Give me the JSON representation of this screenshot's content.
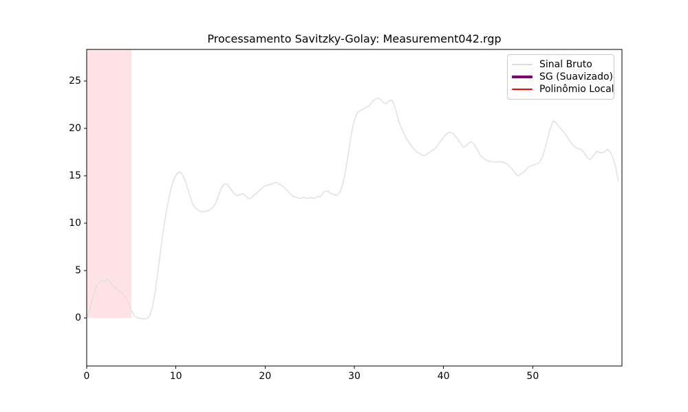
{
  "title": "Processamento Savitzky-Golay: Measurement042.rgp",
  "legend": {
    "items": [
      {
        "label": "Sinal Bruto",
        "color": "#dcdcdc",
        "thickness": 2
      },
      {
        "label": "SG (Suavizado)",
        "color": "#800080",
        "thickness": 4
      },
      {
        "label": "Polinômio Local",
        "color": "#ff0000",
        "thickness": 2
      }
    ]
  },
  "chart_data": {
    "type": "line",
    "title": "Processamento Savitzky-Golay: Measurement042.rgp",
    "xlabel": "",
    "ylabel": "",
    "xlim": [
      0,
      60
    ],
    "ylim": [
      -5.07,
      28.33
    ],
    "x_ticks": [
      0,
      10,
      20,
      30,
      40,
      50
    ],
    "y_ticks": [
      0,
      5,
      10,
      15,
      20,
      25
    ],
    "grid": false,
    "legend_position": "upper right",
    "highlight_region": {
      "x0": 0,
      "x1": 5,
      "y0": 0,
      "y1": 28.33,
      "color": "#ffe2e4"
    },
    "series": [
      {
        "name": "Sinal Bruto",
        "color": "#e2e2e2",
        "linewidth": 1.6,
        "points": [
          [
            0,
            0.1
          ],
          [
            0.3,
            0.7
          ],
          [
            0.6,
            1.9
          ],
          [
            0.9,
            2.9
          ],
          [
            1.2,
            3.5
          ],
          [
            1.5,
            3.8
          ],
          [
            1.8,
            4.0
          ],
          [
            2.1,
            3.9
          ],
          [
            2.3,
            4.1
          ],
          [
            2.6,
            3.8
          ],
          [
            2.9,
            3.4
          ],
          [
            3.2,
            3.2
          ],
          [
            3.6,
            2.9
          ],
          [
            4.0,
            2.6
          ],
          [
            4.4,
            2.1
          ],
          [
            4.7,
            1.5
          ],
          [
            5.0,
            0.8
          ],
          [
            5.3,
            0.3
          ],
          [
            5.6,
            0.05
          ],
          [
            6.0,
            -0.05
          ],
          [
            6.4,
            -0.1
          ],
          [
            6.8,
            -0.05
          ],
          [
            7.1,
            0.3
          ],
          [
            7.4,
            1.3
          ],
          [
            7.7,
            2.9
          ],
          [
            8.0,
            5.0
          ],
          [
            8.3,
            7.2
          ],
          [
            8.6,
            9.3
          ],
          [
            8.9,
            11.1
          ],
          [
            9.2,
            12.6
          ],
          [
            9.5,
            13.8
          ],
          [
            9.8,
            14.7
          ],
          [
            10.1,
            15.2
          ],
          [
            10.4,
            15.4
          ],
          [
            10.7,
            15.2
          ],
          [
            11.0,
            14.6
          ],
          [
            11.3,
            13.7
          ],
          [
            11.6,
            12.8
          ],
          [
            11.9,
            12.0
          ],
          [
            12.2,
            11.6
          ],
          [
            12.6,
            11.3
          ],
          [
            13.0,
            11.2
          ],
          [
            13.4,
            11.25
          ],
          [
            13.8,
            11.4
          ],
          [
            14.2,
            11.7
          ],
          [
            14.5,
            12.2
          ],
          [
            14.8,
            13.0
          ],
          [
            15.1,
            13.7
          ],
          [
            15.4,
            14.1
          ],
          [
            15.7,
            14.15
          ],
          [
            16.0,
            13.8
          ],
          [
            16.3,
            13.4
          ],
          [
            16.6,
            13.05
          ],
          [
            16.9,
            12.9
          ],
          [
            17.2,
            13.05
          ],
          [
            17.5,
            13.1
          ],
          [
            17.8,
            12.9
          ],
          [
            18.1,
            12.6
          ],
          [
            18.4,
            12.6
          ],
          [
            18.7,
            12.9
          ],
          [
            19.1,
            13.2
          ],
          [
            19.5,
            13.6
          ],
          [
            19.9,
            13.9
          ],
          [
            20.3,
            14.05
          ],
          [
            20.7,
            14.1
          ],
          [
            21.0,
            14.25
          ],
          [
            21.3,
            14.3
          ],
          [
            21.6,
            14.1
          ],
          [
            22.0,
            13.9
          ],
          [
            22.4,
            13.5
          ],
          [
            22.8,
            13.1
          ],
          [
            23.2,
            12.8
          ],
          [
            23.6,
            12.7
          ],
          [
            24.0,
            12.6
          ],
          [
            24.3,
            12.75
          ],
          [
            24.7,
            12.6
          ],
          [
            25.1,
            12.7
          ],
          [
            25.5,
            12.6
          ],
          [
            25.8,
            12.8
          ],
          [
            26.2,
            12.8
          ],
          [
            26.6,
            13.3
          ],
          [
            27.0,
            13.4
          ],
          [
            27.3,
            13.2
          ],
          [
            27.7,
            13.0
          ],
          [
            28.1,
            12.95
          ],
          [
            28.4,
            13.3
          ],
          [
            28.7,
            14.1
          ],
          [
            29.0,
            15.4
          ],
          [
            29.3,
            17.2
          ],
          [
            29.6,
            19.0
          ],
          [
            29.9,
            20.5
          ],
          [
            30.2,
            21.4
          ],
          [
            30.5,
            21.8
          ],
          [
            30.9,
            22.0
          ],
          [
            31.3,
            22.2
          ],
          [
            31.7,
            22.4
          ],
          [
            32.1,
            22.9
          ],
          [
            32.4,
            23.1
          ],
          [
            32.7,
            23.2
          ],
          [
            33.0,
            23.0
          ],
          [
            33.3,
            22.7
          ],
          [
            33.6,
            22.6
          ],
          [
            33.9,
            22.9
          ],
          [
            34.2,
            23.0
          ],
          [
            34.5,
            22.4
          ],
          [
            34.8,
            21.4
          ],
          [
            35.1,
            20.4
          ],
          [
            35.4,
            19.8
          ],
          [
            35.8,
            19.0
          ],
          [
            36.2,
            18.4
          ],
          [
            36.6,
            17.9
          ],
          [
            37.0,
            17.5
          ],
          [
            37.4,
            17.3
          ],
          [
            37.8,
            17.1
          ],
          [
            38.2,
            17.3
          ],
          [
            38.6,
            17.6
          ],
          [
            39.0,
            17.8
          ],
          [
            39.4,
            18.3
          ],
          [
            39.8,
            18.8
          ],
          [
            40.2,
            19.3
          ],
          [
            40.6,
            19.6
          ],
          [
            41.0,
            19.5
          ],
          [
            41.4,
            19.1
          ],
          [
            41.8,
            18.6
          ],
          [
            42.2,
            18.0
          ],
          [
            42.6,
            18.2
          ],
          [
            43.0,
            18.6
          ],
          [
            43.3,
            18.5
          ],
          [
            43.7,
            17.9
          ],
          [
            44.1,
            17.2
          ],
          [
            44.5,
            16.8
          ],
          [
            44.9,
            16.6
          ],
          [
            45.3,
            16.5
          ],
          [
            45.8,
            16.45
          ],
          [
            46.3,
            16.5
          ],
          [
            46.8,
            16.4
          ],
          [
            47.2,
            16.2
          ],
          [
            47.6,
            15.8
          ],
          [
            48.0,
            15.3
          ],
          [
            48.3,
            15.0
          ],
          [
            48.7,
            15.2
          ],
          [
            49.1,
            15.5
          ],
          [
            49.5,
            15.9
          ],
          [
            49.9,
            16.1
          ],
          [
            50.3,
            16.2
          ],
          [
            50.7,
            16.35
          ],
          [
            51.1,
            17.0
          ],
          [
            51.5,
            18.3
          ],
          [
            51.9,
            19.8
          ],
          [
            52.3,
            20.8
          ],
          [
            52.6,
            20.6
          ],
          [
            53.0,
            20.1
          ],
          [
            53.4,
            19.7
          ],
          [
            53.8,
            19.2
          ],
          [
            54.2,
            18.6
          ],
          [
            54.6,
            18.15
          ],
          [
            55.0,
            17.9
          ],
          [
            55.4,
            17.8
          ],
          [
            55.8,
            17.4
          ],
          [
            56.1,
            16.9
          ],
          [
            56.4,
            16.7
          ],
          [
            56.8,
            17.1
          ],
          [
            57.2,
            17.6
          ],
          [
            57.6,
            17.4
          ],
          [
            58.0,
            17.5
          ],
          [
            58.4,
            17.8
          ],
          [
            58.7,
            17.5
          ],
          [
            59.0,
            16.9
          ],
          [
            59.3,
            15.9
          ],
          [
            59.6,
            14.5
          ]
        ]
      },
      {
        "name": "SG (Suavizado)",
        "color": "#800080",
        "linewidth": 3.5,
        "points": []
      },
      {
        "name": "Polinômio Local",
        "color": "#ff0000",
        "linewidth": 2,
        "points": []
      }
    ]
  }
}
